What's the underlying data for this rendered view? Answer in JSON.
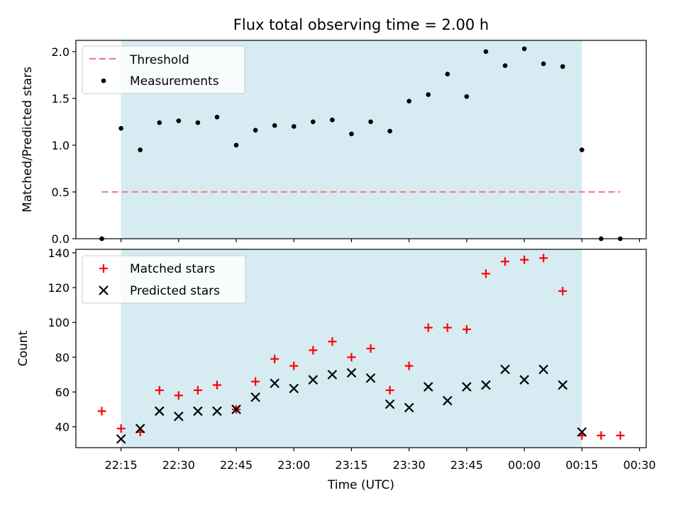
{
  "chart_data": {
    "type": "scatter",
    "title": "Flux total observing time = 2.00 h",
    "xlabel": "Time (UTC)",
    "x_tick_labels": [
      "22:15",
      "22:30",
      "22:45",
      "23:00",
      "23:15",
      "23:30",
      "23:45",
      "00:00",
      "00:15",
      "00:30"
    ],
    "times": [
      "22:10",
      "22:15",
      "22:20",
      "22:25",
      "22:30",
      "22:35",
      "22:40",
      "22:45",
      "22:50",
      "22:55",
      "23:00",
      "23:05",
      "23:10",
      "23:15",
      "23:20",
      "23:25",
      "23:30",
      "23:35",
      "23:40",
      "23:45",
      "23:50",
      "23:55",
      "00:00",
      "00:05",
      "00:10",
      "00:15",
      "00:20",
      "00:25"
    ],
    "observing_window": [
      "22:15",
      "00:15"
    ],
    "shade_color": "#add8e6",
    "panels": [
      {
        "ylabel": "Matched/Predicted stars",
        "ylim": [
          0,
          2.12
        ],
        "y_ticks": [
          "0.0",
          "0.5",
          "1.0",
          "1.5",
          "2.0"
        ],
        "threshold": {
          "name": "Threshold",
          "value": 0.5,
          "x_range": [
            "22:10",
            "00:25"
          ],
          "color": "#f08080",
          "style": "dashed"
        },
        "series": [
          {
            "name": "Measurements",
            "marker": "dot",
            "color": "#000000",
            "values": [
              0.0,
              1.18,
              0.95,
              1.24,
              1.26,
              1.24,
              1.3,
              1.0,
              1.16,
              1.21,
              1.2,
              1.25,
              1.27,
              1.12,
              1.25,
              1.15,
              1.47,
              1.54,
              1.76,
              1.52,
              2.0,
              1.85,
              2.03,
              1.87,
              1.84,
              0.95,
              0.0,
              0.0
            ]
          }
        ],
        "legend_position": "upper-left"
      },
      {
        "ylabel": "Count",
        "ylim": [
          28,
          142
        ],
        "y_ticks": [
          "40",
          "60",
          "80",
          "100",
          "120",
          "140"
        ],
        "series": [
          {
            "name": "Matched stars",
            "marker": "plus",
            "color": "#ff0000",
            "values": [
              49,
              39,
              37,
              61,
              58,
              61,
              64,
              50,
              66,
              79,
              75,
              84,
              89,
              80,
              85,
              61,
              75,
              97,
              97,
              96,
              128,
              135,
              136,
              137,
              118,
              35,
              35,
              35
            ]
          },
          {
            "name": "Predicted stars",
            "marker": "x",
            "color": "#000000",
            "values": [
              null,
              33,
              39,
              49,
              46,
              49,
              49,
              50,
              57,
              65,
              62,
              67,
              70,
              71,
              68,
              53,
              51,
              63,
              55,
              63,
              64,
              73,
              67,
              73,
              64,
              37,
              null,
              null
            ]
          }
        ],
        "legend_position": "upper-left"
      }
    ]
  }
}
